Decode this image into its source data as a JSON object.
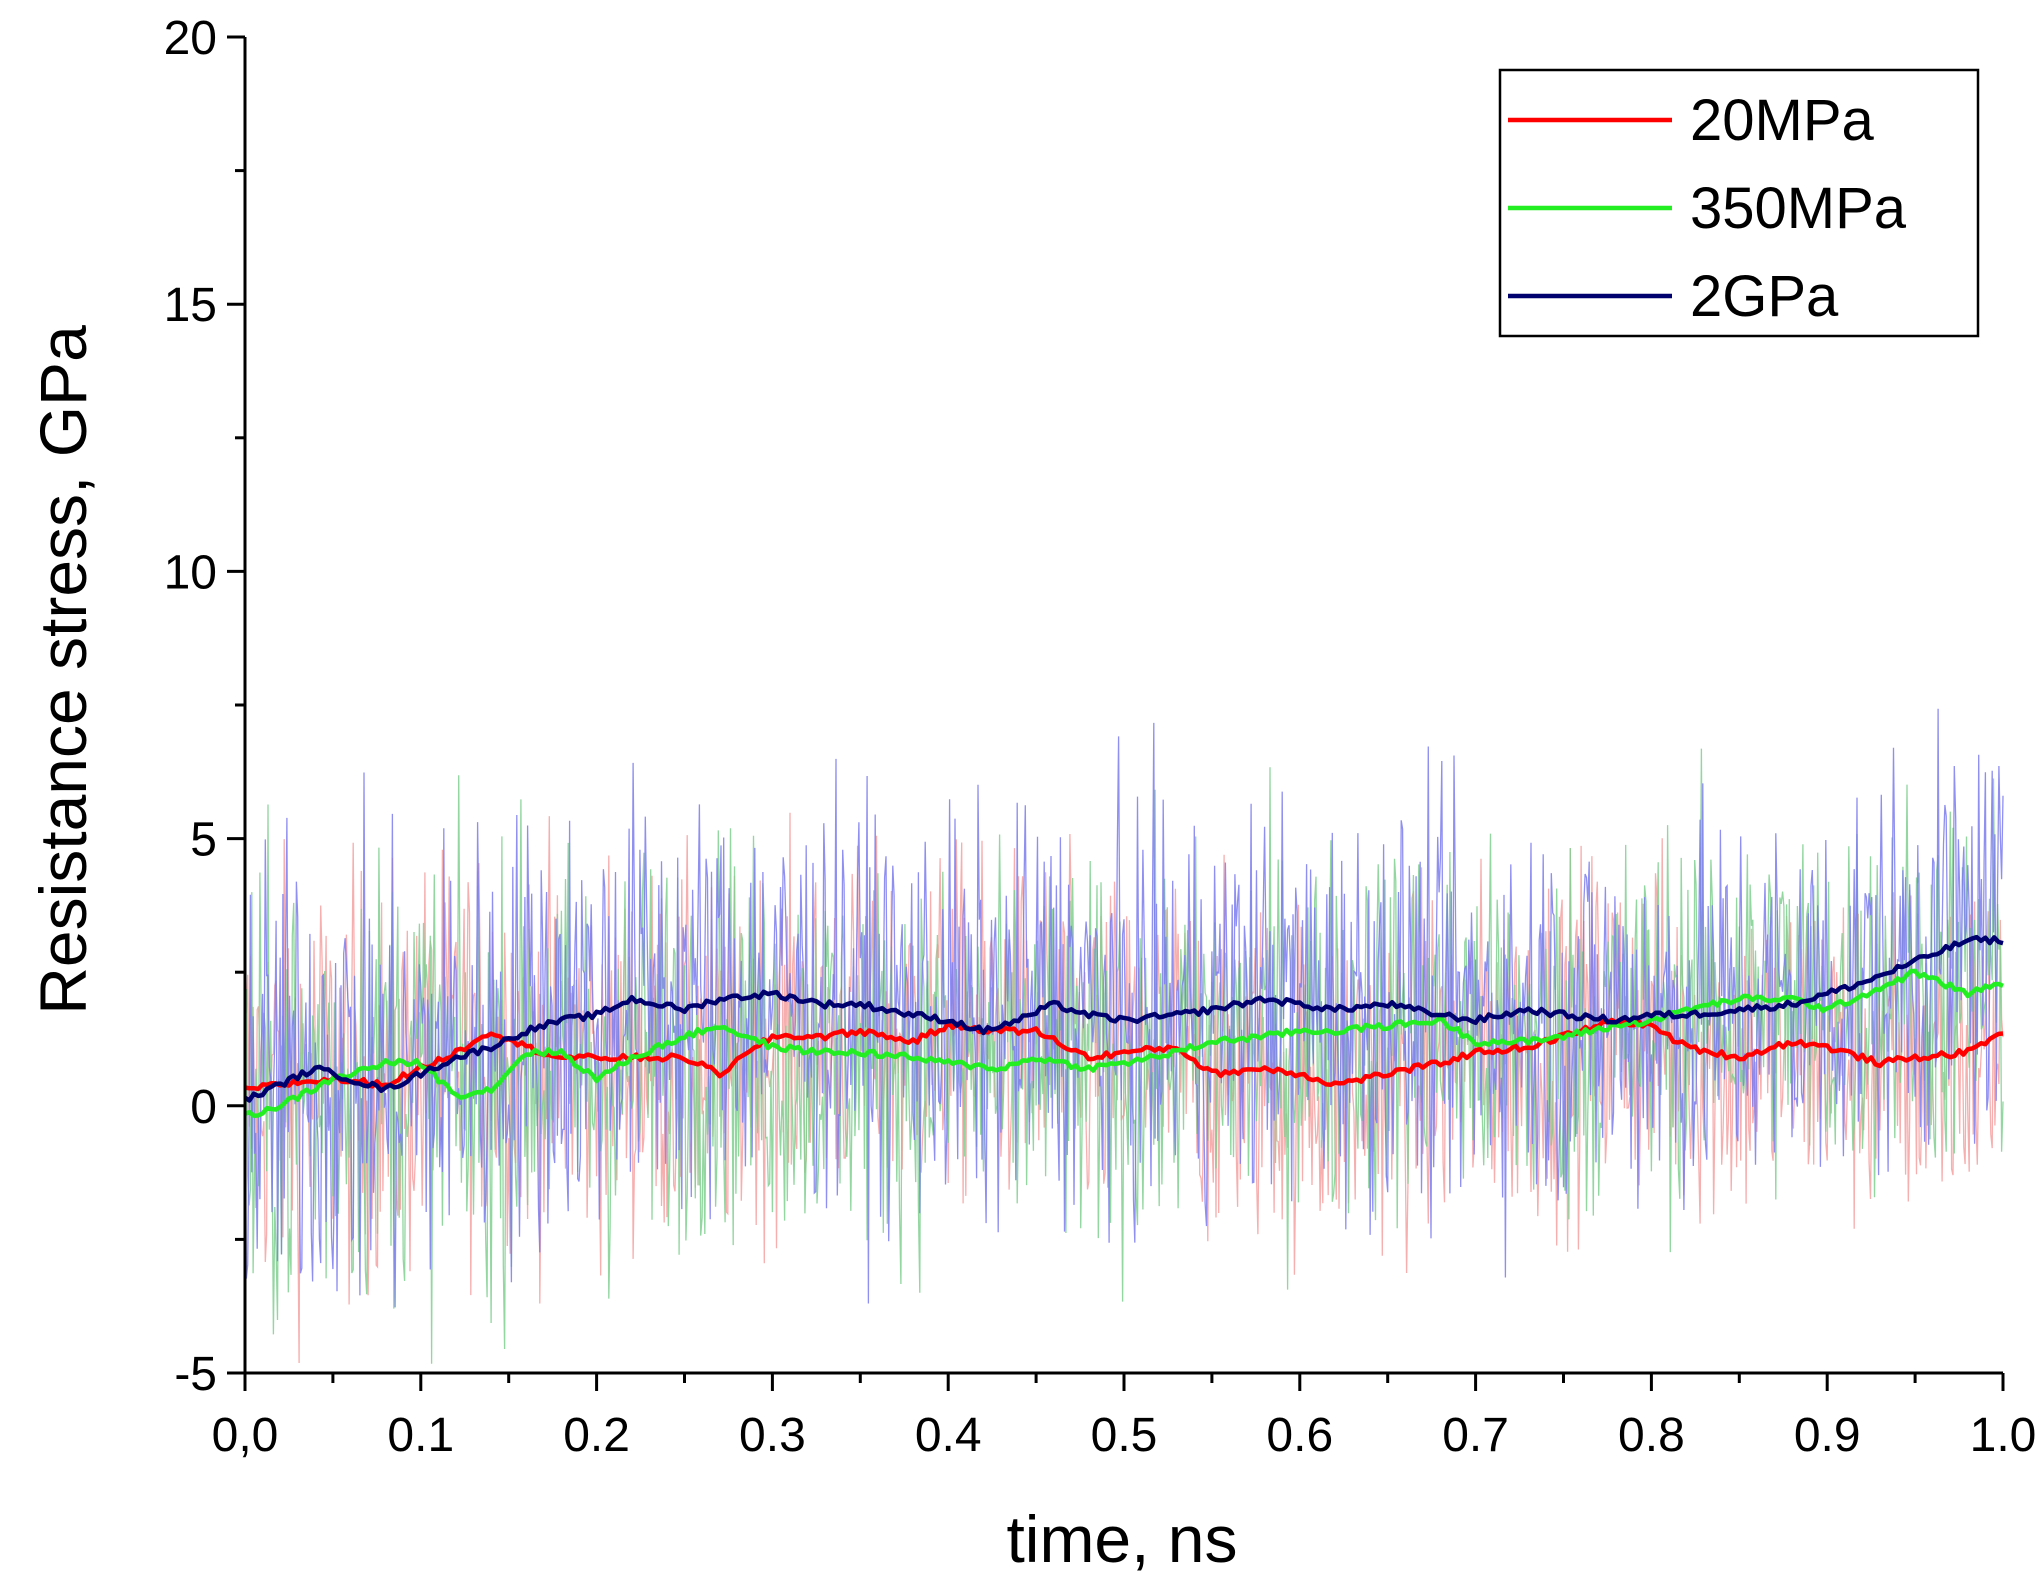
{
  "chart_data": {
    "type": "line",
    "title": "",
    "xlabel": "time, ns",
    "ylabel": "Resistance stress, GPa",
    "xlim": [
      0.0,
      1.0
    ],
    "ylim": [
      -5,
      20
    ],
    "x_ticks": [
      0.0,
      0.1,
      0.2,
      0.3,
      0.4,
      0.5,
      0.6,
      0.7,
      0.8,
      0.9,
      1.0
    ],
    "x_tick_labels": [
      "0,0",
      "0.1",
      "0.2",
      "0.3",
      "0.4",
      "0.5",
      "0.6",
      "0.7",
      "0.8",
      "0.9",
      "1.0"
    ],
    "y_ticks": [
      -5,
      0,
      5,
      10,
      15,
      20
    ],
    "y_tick_labels": [
      "-5",
      "0",
      "5",
      "10",
      "15",
      "20"
    ],
    "grid": false,
    "legend_position": "top-right",
    "series": [
      {
        "name": "20MPa",
        "color": "#ff0000",
        "raw_color": "#f4a0a0",
        "noise_amplitude": 2.2,
        "smoothed": {
          "x": [
            0.0,
            0.02,
            0.05,
            0.08,
            0.1,
            0.12,
            0.14,
            0.16,
            0.18,
            0.2,
            0.22,
            0.25,
            0.27,
            0.3,
            0.33,
            0.35,
            0.38,
            0.4,
            0.43,
            0.45,
            0.48,
            0.5,
            0.53,
            0.55,
            0.58,
            0.6,
            0.62,
            0.65,
            0.68,
            0.7,
            0.73,
            0.75,
            0.78,
            0.8,
            0.82,
            0.85,
            0.88,
            0.9,
            0.93,
            0.95,
            0.98,
            1.0
          ],
          "y": [
            0.3,
            0.4,
            0.5,
            0.4,
            0.7,
            1.0,
            1.4,
            1.1,
            0.9,
            0.9,
            0.9,
            0.9,
            0.6,
            1.3,
            1.3,
            1.4,
            1.2,
            1.5,
            1.4,
            1.4,
            0.9,
            1.0,
            1.1,
            0.6,
            0.7,
            0.6,
            0.4,
            0.6,
            0.8,
            1.0,
            1.1,
            1.3,
            1.6,
            1.5,
            1.1,
            0.9,
            1.2,
            1.1,
            0.8,
            0.9,
            1.0,
            1.4
          ]
        }
      },
      {
        "name": "350MPa",
        "color": "#22ee22",
        "raw_color": "#7fcf8f",
        "noise_amplitude": 2.4,
        "smoothed": {
          "x": [
            0.0,
            0.02,
            0.05,
            0.08,
            0.1,
            0.12,
            0.14,
            0.16,
            0.18,
            0.2,
            0.22,
            0.25,
            0.27,
            0.3,
            0.33,
            0.35,
            0.38,
            0.4,
            0.43,
            0.45,
            0.48,
            0.5,
            0.53,
            0.55,
            0.58,
            0.6,
            0.62,
            0.65,
            0.68,
            0.7,
            0.73,
            0.75,
            0.78,
            0.8,
            0.82,
            0.85,
            0.88,
            0.9,
            0.93,
            0.95,
            0.98,
            1.0
          ],
          "y": [
            -0.2,
            0.0,
            0.5,
            0.8,
            0.8,
            0.2,
            0.3,
            1.0,
            1.0,
            0.5,
            0.9,
            1.3,
            1.5,
            1.1,
            1.0,
            1.0,
            0.9,
            0.8,
            0.7,
            0.9,
            0.7,
            0.8,
            1.0,
            1.2,
            1.3,
            1.4,
            1.4,
            1.5,
            1.6,
            1.2,
            1.2,
            1.3,
            1.5,
            1.6,
            1.8,
            2.0,
            2.0,
            1.8,
            2.2,
            2.5,
            2.1,
            2.3
          ]
        }
      },
      {
        "name": "2GPa",
        "color": "#00006e",
        "raw_color": "#7b7bef",
        "noise_amplitude": 2.5,
        "smoothed": {
          "x": [
            0.0,
            0.02,
            0.04,
            0.06,
            0.08,
            0.1,
            0.12,
            0.14,
            0.16,
            0.18,
            0.2,
            0.22,
            0.25,
            0.27,
            0.3,
            0.33,
            0.35,
            0.38,
            0.4,
            0.42,
            0.44,
            0.46,
            0.48,
            0.5,
            0.53,
            0.55,
            0.58,
            0.6,
            0.62,
            0.65,
            0.68,
            0.7,
            0.73,
            0.75,
            0.78,
            0.8,
            0.82,
            0.85,
            0.88,
            0.9,
            0.92,
            0.95,
            0.98,
            1.0
          ],
          "y": [
            0.1,
            0.4,
            0.7,
            0.5,
            0.3,
            0.6,
            0.9,
            1.1,
            1.4,
            1.6,
            1.7,
            2.0,
            1.8,
            2.0,
            2.1,
            1.9,
            1.9,
            1.7,
            1.6,
            1.4,
            1.6,
            1.9,
            1.7,
            1.6,
            1.7,
            1.8,
            2.0,
            1.9,
            1.8,
            1.9,
            1.7,
            1.6,
            1.8,
            1.7,
            1.6,
            1.7,
            1.7,
            1.8,
            1.9,
            2.1,
            2.3,
            2.7,
            3.1,
            3.1
          ]
        }
      }
    ]
  }
}
